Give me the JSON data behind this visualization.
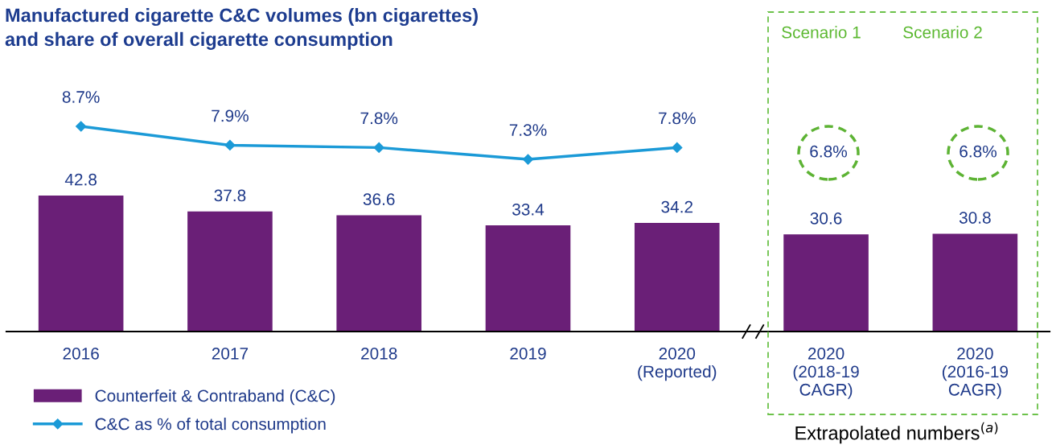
{
  "chart_data": [
    {
      "type": "bar",
      "categories": [
        "2016",
        "2017",
        "2018",
        "2019",
        "2020\n(Reported)",
        "2020\n(2018-19\nCAGR)",
        "2020\n(2016-19\nCAGR)"
      ],
      "series": [
        {
          "name": "Counterfeit & Contraband (C&C)",
          "color": "#6a1f77",
          "values": [
            42.8,
            37.8,
            36.6,
            33.4,
            34.2,
            30.6,
            30.8
          ],
          "value_labels": [
            "42.8",
            "37.8",
            "36.6",
            "33.4",
            "34.2",
            "30.6",
            "30.8"
          ]
        }
      ],
      "ylim": [
        0,
        42.8
      ],
      "annotations": [
        "Scenario 1",
        "Scenario 2",
        "Extrapolated numbers$^{(a)}$",
        "6.8%",
        "6.8%"
      ],
      "legend": "bottom left",
      "tick_labels": "x"
    },
    {
      "type": "line",
      "title": "Manufactured cigarette C&C volumes (bn cigarettes)\nand share of overall cigarette consumption",
      "categories": [
        null,
        null,
        null,
        null,
        null,
        null,
        null
      ],
      "series": [
        {
          "name": "C&C as % of total consumption",
          "color": "#1b9ad7",
          "values": [
            8.7,
            7.9,
            7.8,
            7.3,
            7.8,
            null,
            null
          ],
          "value_labels": [
            "8.7%",
            "7.9%",
            "7.8%",
            "7.3%",
            "7.8%",
            null,
            null
          ]
        }
      ],
      "marker": "diamond",
      "legend": "bottom left",
      "tick_labels": false
    }
  ]
}
